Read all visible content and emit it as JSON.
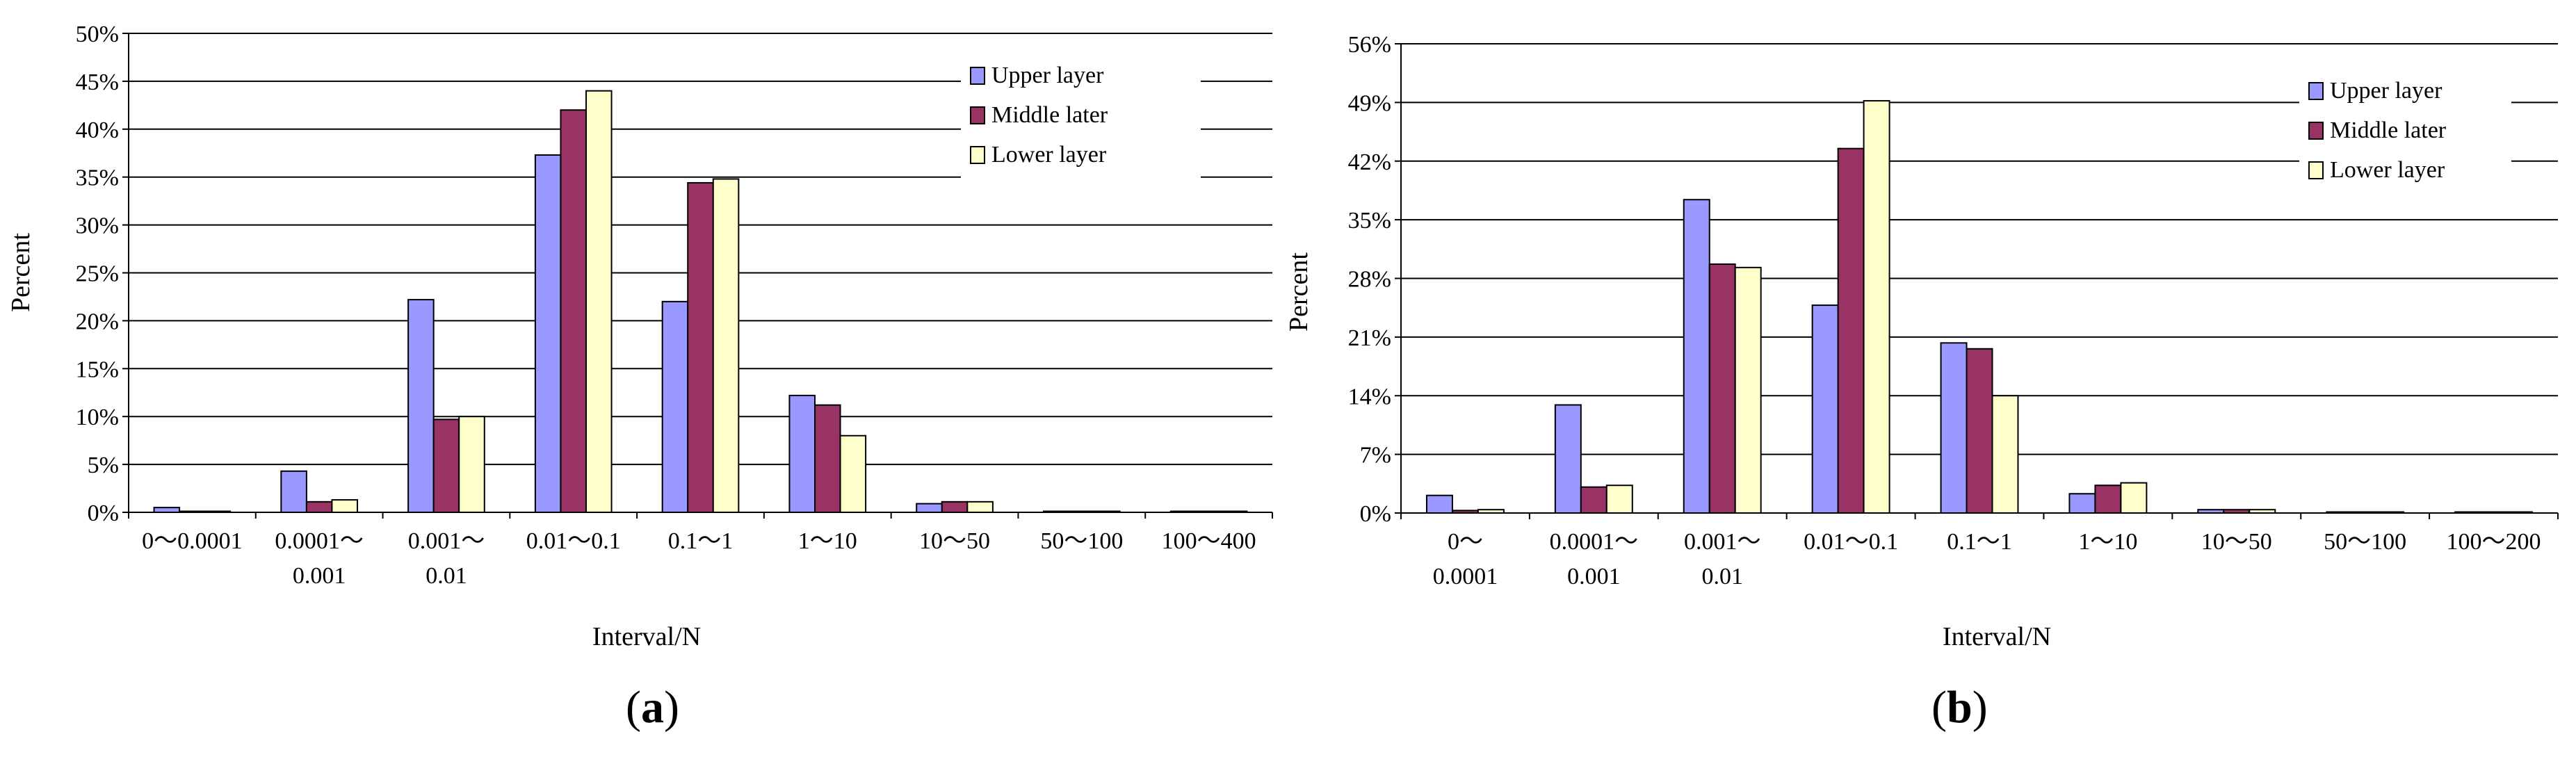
{
  "charts": [
    {
      "id": "a",
      "caption_letter": "a",
      "chart_data": {
        "type": "bar",
        "title": "",
        "xlabel": "Interval/N",
        "ylabel": "Percent",
        "ylim": [
          0,
          50
        ],
        "y_unit": "%",
        "y_ticks": [
          "0%",
          "5%",
          "10%",
          "15%",
          "20%",
          "25%",
          "30%",
          "35%",
          "40%",
          "45%",
          "50%"
        ],
        "categories": [
          "0～0.0001",
          "0.0001～\n0.001",
          "0.001～\n0.01",
          "0.01～0.1",
          "0.1～1",
          "1～10",
          "10～50",
          "50～100",
          "100～400"
        ],
        "series": [
          {
            "name": "Upper layer",
            "color": "#9999ff",
            "values": [
              0.5,
              4.3,
              22.2,
              37.3,
              22.0,
              12.2,
              0.9,
              0.1,
              0.1
            ]
          },
          {
            "name": "Middle later",
            "color": "#993366",
            "values": [
              0.1,
              1.1,
              9.7,
              42.0,
              34.4,
              11.2,
              1.1,
              0.1,
              0.1
            ]
          },
          {
            "name": "Lower layer",
            "color": "#ffffcc",
            "values": [
              0.1,
              1.3,
              10.0,
              44.0,
              34.8,
              8.0,
              1.1,
              0.1,
              0.1
            ]
          }
        ],
        "legend_position": "top-right",
        "grid": true
      }
    },
    {
      "id": "b",
      "caption_letter": "b",
      "chart_data": {
        "type": "bar",
        "title": "",
        "xlabel": "Interval/N",
        "ylabel": "Percent",
        "ylim": [
          0,
          56
        ],
        "y_unit": "%",
        "y_ticks": [
          "0%",
          "7%",
          "14%",
          "21%",
          "28%",
          "35%",
          "42%",
          "49%",
          "56%"
        ],
        "categories": [
          "0～\n0.0001",
          "0.0001～\n0.001",
          "0.001～\n0.01",
          "0.01～0.1",
          "0.1～1",
          "1～10",
          "10～50",
          "50～100",
          "100～200"
        ],
        "series": [
          {
            "name": "Upper layer",
            "color": "#9999ff",
            "values": [
              2.1,
              12.9,
              37.4,
              24.8,
              20.3,
              2.3,
              0.4,
              0.1,
              0.0
            ]
          },
          {
            "name": "Middle later",
            "color": "#993366",
            "values": [
              0.3,
              3.1,
              29.7,
              43.5,
              19.6,
              3.3,
              0.4,
              0.1,
              0.1
            ]
          },
          {
            "name": "Lower layer",
            "color": "#ffffcc",
            "values": [
              0.4,
              3.3,
              29.3,
              49.2,
              14.0,
              3.6,
              0.4,
              0.1,
              0.0
            ]
          }
        ],
        "legend_position": "top-right",
        "grid": true
      }
    }
  ]
}
